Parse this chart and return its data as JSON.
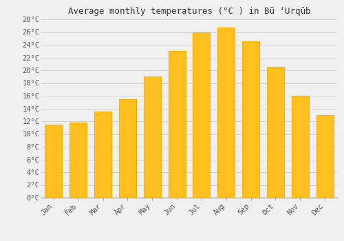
{
  "months": [
    "Jan",
    "Feb",
    "Mar",
    "Apr",
    "May",
    "Jun",
    "Jul",
    "Aug",
    "Sep",
    "Oct",
    "Nov",
    "Dec"
  ],
  "temperatures": [
    11.5,
    11.8,
    13.5,
    15.5,
    19.0,
    23.0,
    26.0,
    26.7,
    24.5,
    20.5,
    16.0,
    13.0
  ],
  "bar_color": "#FFC020",
  "bar_edge_color": "#FFB000",
  "title": "Average monthly temperatures (°C ) in Bū ‘Urqūb",
  "ylim": [
    0,
    28
  ],
  "ytick_step": 2,
  "background_color": "#f0f0f0",
  "grid_color": "#d0d0d0",
  "title_fontsize": 9,
  "tick_fontsize": 7.5,
  "font_family": "monospace"
}
